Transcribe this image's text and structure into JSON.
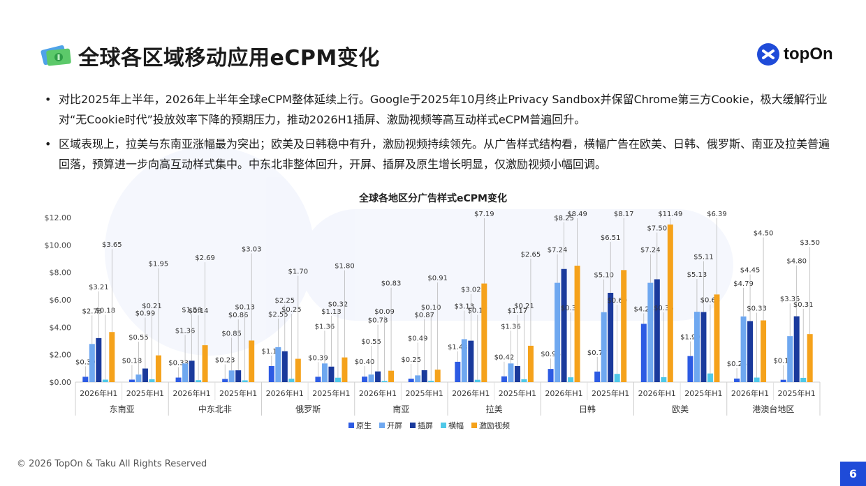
{
  "header": {
    "title": "全球各区域移动应用eCPM变化",
    "brand": "topOn",
    "icon": "money-bills-icon"
  },
  "bullets": [
    "对比2025年上半年，2026年上半年全球eCPM整体延续上行。Google于2025年10月终止Privacy Sandbox并保留Chrome第三方Cookie，极大缓解行业对“无Cookie时代”投放效率下降的预期压力，推动2026H1插屏、激励视频等高互动样式eCPM普遍回升。",
    "区域表现上，拉美与东南亚涨幅最为突出；欧美及日韩稳中有升，激励视频持续领先。从广告样式结构看，横幅广告在欧美、日韩、俄罗斯、南亚及拉美普遍回落，预算进一步向高互动样式集中。中东北非整体回升，开屏、插屏及原生增长明显，仅激励视频小幅回调。"
  ],
  "footer": {
    "copyright": "© 2026 TopOn & Taku All Rights Reserved",
    "page_number": "6"
  },
  "chart_data": {
    "type": "bar",
    "title": "全球各地区分广告样式eCPM变化",
    "xlabel": "",
    "ylabel": "",
    "ylim": [
      0,
      12
    ],
    "yticks": [
      "$0.00",
      "$2.00",
      "$4.00",
      "$6.00",
      "$8.00",
      "$10.00",
      "$12.00"
    ],
    "grid": false,
    "legend_position": "bottom",
    "regions": [
      "东南亚",
      "中东北非",
      "俄罗斯",
      "南亚",
      "拉美",
      "日韩",
      "欧美",
      "港澳台地区"
    ],
    "periods": [
      "2026年H1",
      "2025年H1"
    ],
    "colors": [
      "#2d5be3",
      "#6fa8f0",
      "#1a3a9c",
      "#4fc8e8",
      "#f5a21b"
    ],
    "series": [
      {
        "name": "原生",
        "values": [
          0.39,
          0.18,
          0.33,
          0.23,
          1.17,
          0.39,
          0.4,
          0.25,
          1.48,
          0.42,
          0.96,
          0.77,
          4.25,
          1.9,
          0.26,
          0.17
        ]
      },
      {
        "name": "开屏",
        "values": [
          2.78,
          0.55,
          1.36,
          0.85,
          2.55,
          1.36,
          0.55,
          0.49,
          3.13,
          1.36,
          7.24,
          5.1,
          7.24,
          5.13,
          4.79,
          3.35
        ]
      },
      {
        "name": "插屏",
        "values": [
          3.21,
          0.99,
          1.56,
          0.86,
          2.25,
          1.13,
          0.78,
          0.87,
          3.02,
          1.17,
          8.25,
          6.51,
          7.5,
          5.11,
          4.45,
          4.8
        ]
      },
      {
        "name": "横幅",
        "values": [
          0.18,
          0.21,
          0.14,
          0.13,
          0.25,
          0.32,
          0.09,
          0.1,
          0.17,
          0.21,
          0.35,
          0.6,
          0.36,
          0.63,
          0.33,
          0.31
        ]
      },
      {
        "name": "激励视频",
        "values": [
          3.65,
          1.95,
          2.69,
          3.03,
          1.7,
          1.8,
          0.83,
          0.91,
          7.19,
          2.65,
          8.49,
          8.17,
          11.49,
          6.39,
          4.5,
          3.5
        ]
      }
    ]
  }
}
